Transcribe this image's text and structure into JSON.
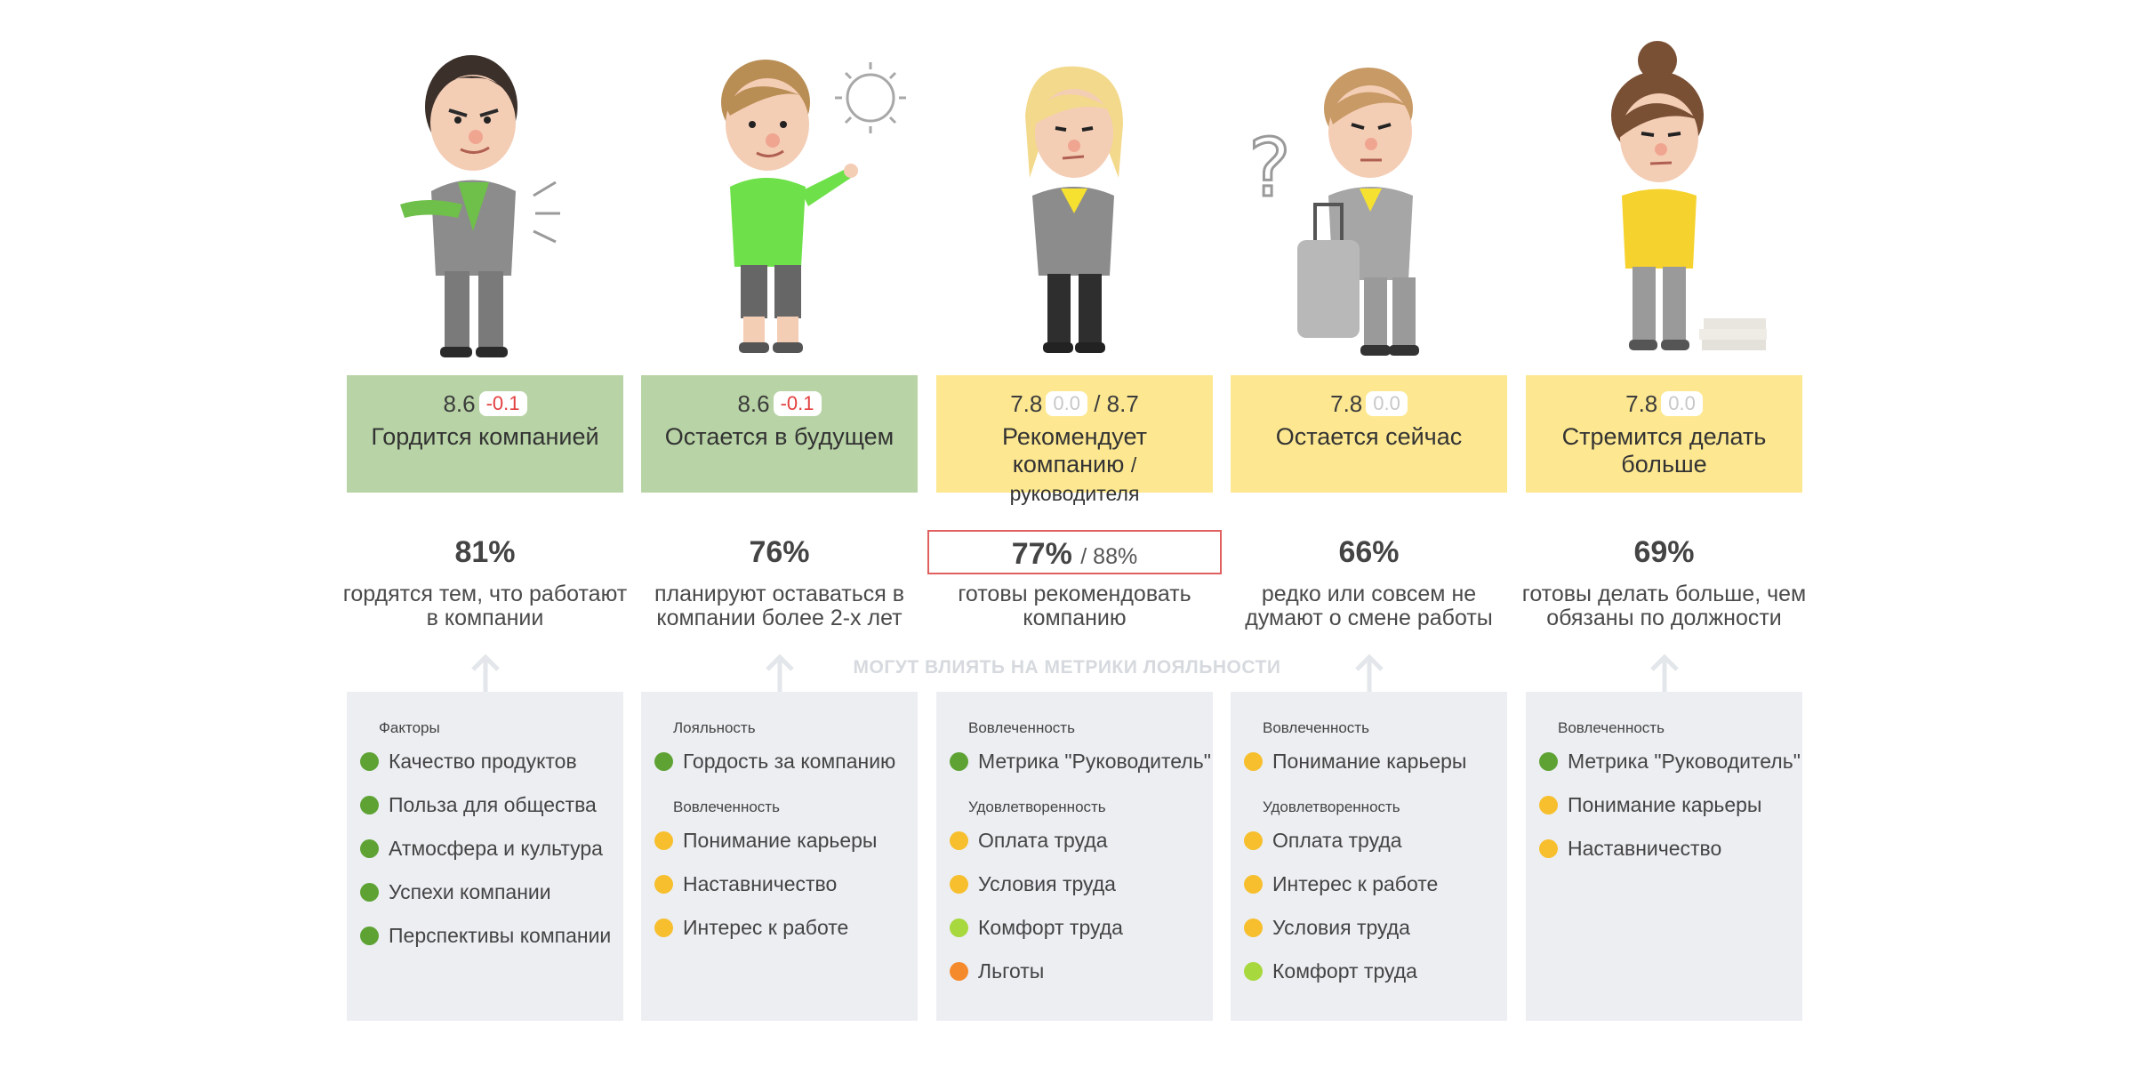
{
  "influence_label": "МОГУТ ВЛИЯТЬ НА МЕТРИКИ ЛОЯЛЬНОСТИ",
  "colors": {
    "card_green": "#b8d4a6",
    "card_yellow": "#fde891",
    "dot_green": "#5ea234",
    "dot_yellow": "#f7bf2d",
    "dot_light_green": "#a7d83d",
    "dot_orange": "#f58a2c",
    "delta_negative": "#e2403f"
  },
  "columns": [
    {
      "icon": "proud-businessman-icon",
      "score": "8.6",
      "delta": "-0.1",
      "title": "Гордится компанией",
      "title_sub": "",
      "percent": "81%",
      "percent_second": "",
      "description": "гордятся тем, что работают в компании",
      "groups": [
        {
          "title": "Факторы",
          "items": [
            {
              "label": "Качество продуктов",
              "color": "#5ea234"
            },
            {
              "label": "Польза для общества",
              "color": "#5ea234"
            },
            {
              "label": "Атмосфера и культура",
              "color": "#5ea234"
            },
            {
              "label": "Успехи компании",
              "color": "#5ea234"
            },
            {
              "label": "Перспективы компании",
              "color": "#5ea234"
            }
          ]
        }
      ]
    },
    {
      "icon": "happy-man-sun-icon",
      "score": "8.6",
      "delta": "-0.1",
      "title": "Остается в будущем",
      "title_sub": "",
      "percent": "76%",
      "percent_second": "",
      "description": "планируют оставаться в компании более 2-х лет",
      "groups": [
        {
          "title": "Лояльность",
          "items": [
            {
              "label": "Гордость за компанию",
              "color": "#5ea234"
            }
          ]
        },
        {
          "title": "Вовлеченность",
          "items": [
            {
              "label": "Понимание карьеры",
              "color": "#f7bf2d"
            },
            {
              "label": "Наставничество",
              "color": "#f7bf2d"
            },
            {
              "label": "Интерес к работе",
              "color": "#f7bf2d"
            }
          ]
        }
      ]
    },
    {
      "icon": "thinking-woman-icon",
      "score": "7.8",
      "delta": "0.0",
      "score_second": "/ 8.7",
      "title": "Рекомендует компанию",
      "title_sub": "/ руководителя",
      "percent": "77%",
      "percent_second": "/ 88%",
      "description": "готовы рекомендовать компанию",
      "groups": [
        {
          "title": "Вовлеченность",
          "items": [
            {
              "label": "Метрика \"Руководитель\"",
              "color": "#5ea234"
            }
          ]
        },
        {
          "title": "Удовлетворенность",
          "items": [
            {
              "label": "Оплата труда",
              "color": "#f7bf2d"
            },
            {
              "label": "Условия труда",
              "color": "#f7bf2d"
            },
            {
              "label": "Комфорт труда",
              "color": "#a7d83d"
            },
            {
              "label": "Льготы",
              "color": "#f58a2c"
            }
          ]
        }
      ]
    },
    {
      "icon": "man-with-suitcase-icon",
      "score": "7.8",
      "delta": "0.0",
      "title": "Остается сейчас",
      "title_sub": "",
      "percent": "66%",
      "percent_second": "",
      "description": "редко или совсем не думают о смене работы",
      "groups": [
        {
          "title": "Вовлеченность",
          "items": [
            {
              "label": "Понимание карьеры",
              "color": "#f7bf2d"
            }
          ]
        },
        {
          "title": "Удовлетворенность",
          "items": [
            {
              "label": "Оплата труда",
              "color": "#f7bf2d"
            },
            {
              "label": "Интерес к работе",
              "color": "#f7bf2d"
            },
            {
              "label": "Условия труда",
              "color": "#f7bf2d"
            },
            {
              "label": "Комфорт труда",
              "color": "#a7d83d"
            }
          ]
        }
      ]
    },
    {
      "icon": "tired-woman-icon",
      "score": "7.8",
      "delta": "0.0",
      "title": "Стремится делать больше",
      "title_sub": "",
      "percent": "69%",
      "percent_second": "",
      "description": "готовы делать больше, чем обязаны по должности",
      "groups": [
        {
          "title": "Вовлеченность",
          "items": [
            {
              "label": "Метрика \"Руководитель\"",
              "color": "#5ea234"
            },
            {
              "label": "Понимание карьеры",
              "color": "#f7bf2d"
            },
            {
              "label": "Наставничество",
              "color": "#f7bf2d"
            }
          ]
        }
      ]
    }
  ]
}
